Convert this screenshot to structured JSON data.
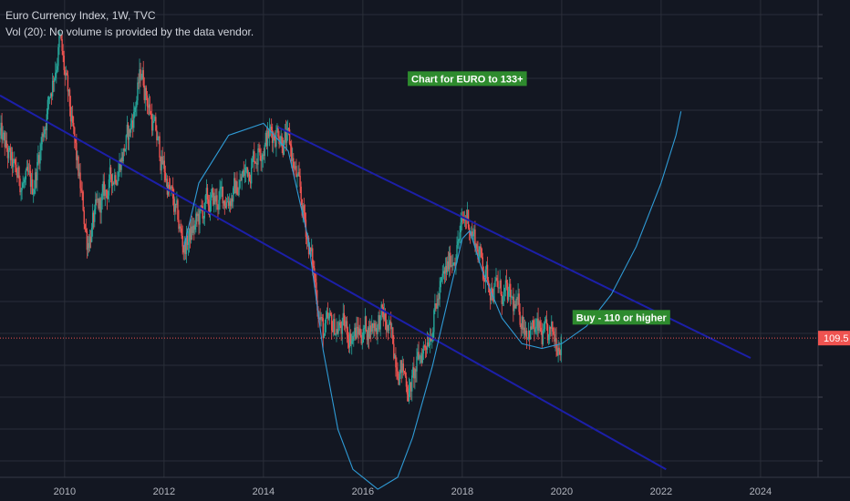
{
  "legend": {
    "title": "Euro Currency Index, 1W, TVC",
    "volume_note": "Vol (20): No volume is provided by the data vendor."
  },
  "colors": {
    "background": "#131722",
    "grid": "#2a2e39",
    "candle_up": "#26a69a",
    "candle_down": "#ef5350",
    "channel_line": "#1c1fa8",
    "curve": "#2f9bd6",
    "annotation_bg": "#2e8b2e",
    "last_price": "#ef5350"
  },
  "chart_data": {
    "type": "candlestick",
    "title": "Euro Currency Index, 1W, TVC",
    "xlabel": "",
    "ylabel": "",
    "x_ticks": [
      "2010",
      "2012",
      "2014",
      "2016",
      "2018",
      "2020",
      "2022",
      "2024"
    ],
    "x_range": [
      2008.7,
      2025.8
    ],
    "y_range": [
      92,
      152
    ],
    "y_scale_ticks_shown": false,
    "grid": true,
    "last_price": 109.5,
    "last_price_label": "109.5",
    "series": [
      {
        "name": "Euro Currency Index",
        "kind": "weekly candles",
        "keypoints": [
          {
            "x": 2008.7,
            "y": 135
          },
          {
            "x": 2009.0,
            "y": 130
          },
          {
            "x": 2009.35,
            "y": 128
          },
          {
            "x": 2009.9,
            "y": 147
          },
          {
            "x": 2010.45,
            "y": 122
          },
          {
            "x": 2010.85,
            "y": 128
          },
          {
            "x": 2011.3,
            "y": 135
          },
          {
            "x": 2011.55,
            "y": 143
          },
          {
            "x": 2011.9,
            "y": 133
          },
          {
            "x": 2012.4,
            "y": 121
          },
          {
            "x": 2012.85,
            "y": 126
          },
          {
            "x": 2013.45,
            "y": 128
          },
          {
            "x": 2013.95,
            "y": 134
          },
          {
            "x": 2014.3,
            "y": 136
          },
          {
            "x": 2014.55,
            "y": 133
          },
          {
            "x": 2014.9,
            "y": 122
          },
          {
            "x": 2015.2,
            "y": 110
          },
          {
            "x": 2015.45,
            "y": 111
          },
          {
            "x": 2015.85,
            "y": 110
          },
          {
            "x": 2016.4,
            "y": 112
          },
          {
            "x": 2016.95,
            "y": 103
          },
          {
            "x": 2017.4,
            "y": 112
          },
          {
            "x": 2017.75,
            "y": 119
          },
          {
            "x": 2018.1,
            "y": 125
          },
          {
            "x": 2018.5,
            "y": 117
          },
          {
            "x": 2018.95,
            "y": 114
          },
          {
            "x": 2019.35,
            "y": 111
          },
          {
            "x": 2019.7,
            "y": 109
          },
          {
            "x": 2020.0,
            "y": 110
          }
        ]
      }
    ],
    "channel_lines": [
      {
        "name": "upper-channel",
        "from": {
          "x": 2014.3,
          "y": 136
        },
        "to": {
          "x": 2023.8,
          "y": 107
        }
      },
      {
        "name": "lower-channel",
        "from": {
          "x": 2008.7,
          "y": 140
        },
        "to": {
          "x": 2022.1,
          "y": 93
        }
      }
    ],
    "annotations": [
      {
        "text": "Chart for EURO to 133+",
        "x": 2018.1,
        "y": 142
      },
      {
        "text": "Buy - 110 or higher",
        "x": 2021.2,
        "y": 112
      }
    ]
  }
}
